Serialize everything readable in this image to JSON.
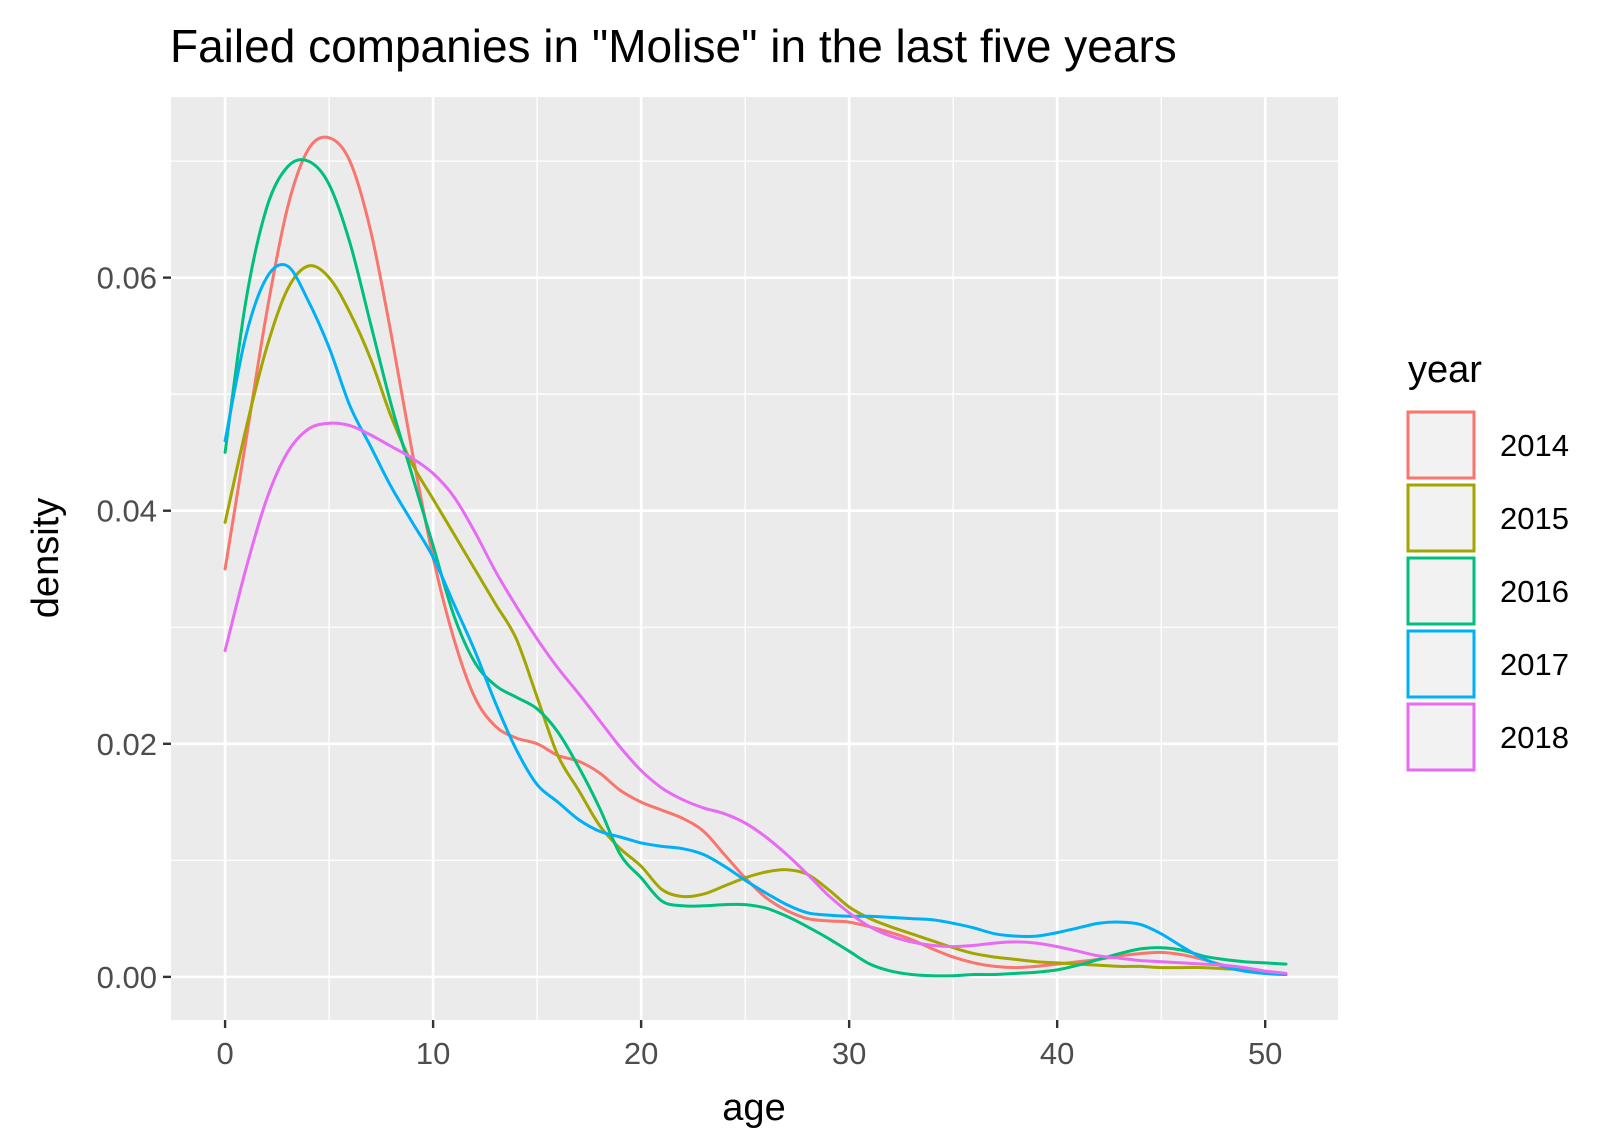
{
  "chart_data": {
    "type": "line",
    "title": "Failed companies in \"Molise\" in the last five years",
    "xlabel": "age",
    "ylabel": "density",
    "xlim": [
      -2.6,
      53.5
    ],
    "ylim": [
      -0.0037,
      0.0755
    ],
    "x_ticks": [
      0,
      10,
      20,
      30,
      40,
      50
    ],
    "x_tick_labels": [
      "0",
      "10",
      "20",
      "30",
      "40",
      "50"
    ],
    "y_ticks": [
      0.0,
      0.02,
      0.04,
      0.06
    ],
    "y_tick_labels": [
      "0.00",
      "0.02",
      "0.04",
      "0.06"
    ],
    "grid": true,
    "legend": {
      "title": "year",
      "position": "right"
    },
    "x": [
      0,
      1,
      2,
      3,
      4,
      5,
      6,
      7,
      8,
      9,
      10,
      11,
      12,
      13,
      14,
      15,
      16,
      17,
      18,
      19,
      20,
      21,
      22,
      23,
      24,
      25,
      26,
      27,
      28,
      29,
      30,
      31,
      32,
      33,
      34,
      35,
      36,
      37,
      38,
      39,
      40,
      41,
      42,
      43,
      44,
      45,
      46,
      47,
      48,
      49,
      50,
      51
    ],
    "series": [
      {
        "name": "2014",
        "color": "#f8766d",
        "values": [
          0.035,
          0.046,
          0.057,
          0.066,
          0.071,
          0.072,
          0.07,
          0.064,
          0.055,
          0.045,
          0.036,
          0.029,
          0.024,
          0.0215,
          0.0205,
          0.02,
          0.019,
          0.0185,
          0.0175,
          0.016,
          0.015,
          0.0143,
          0.0136,
          0.0125,
          0.0105,
          0.0085,
          0.0068,
          0.0057,
          0.005,
          0.0048,
          0.0047,
          0.0043,
          0.0038,
          0.0032,
          0.0024,
          0.0017,
          0.0012,
          0.0009,
          0.0008,
          0.0009,
          0.0011,
          0.0013,
          0.0015,
          0.0018,
          0.002,
          0.0021,
          0.0019,
          0.0015,
          0.001,
          0.0006,
          0.0003,
          0.0002
        ]
      },
      {
        "name": "2015",
        "color": "#a3a500",
        "values": [
          0.039,
          0.047,
          0.054,
          0.059,
          0.061,
          0.06,
          0.057,
          0.053,
          0.048,
          0.044,
          0.041,
          0.038,
          0.035,
          0.032,
          0.029,
          0.024,
          0.019,
          0.016,
          0.013,
          0.011,
          0.0095,
          0.0075,
          0.0069,
          0.0071,
          0.0078,
          0.0085,
          0.009,
          0.0092,
          0.0088,
          0.0075,
          0.006,
          0.005,
          0.0043,
          0.0037,
          0.0031,
          0.0025,
          0.002,
          0.0017,
          0.0015,
          0.0013,
          0.0012,
          0.0011,
          0.001,
          0.0009,
          0.0009,
          0.0008,
          0.0008,
          0.0008,
          0.0007,
          0.0006,
          0.0004,
          0.0002
        ]
      },
      {
        "name": "2016",
        "color": "#00bf7d",
        "values": [
          0.045,
          0.058,
          0.066,
          0.0695,
          0.07,
          0.068,
          0.063,
          0.056,
          0.049,
          0.043,
          0.037,
          0.031,
          0.027,
          0.025,
          0.024,
          0.023,
          0.021,
          0.018,
          0.0145,
          0.0105,
          0.0085,
          0.0065,
          0.0061,
          0.0061,
          0.0062,
          0.0062,
          0.0059,
          0.0052,
          0.0043,
          0.0033,
          0.0022,
          0.0011,
          0.0005,
          0.0002,
          0.0001,
          0.0001,
          0.0002,
          0.0002,
          0.0003,
          0.0004,
          0.0006,
          0.001,
          0.0015,
          0.002,
          0.0024,
          0.0025,
          0.0023,
          0.0018,
          0.0015,
          0.0013,
          0.0012,
          0.0011
        ]
      },
      {
        "name": "2017",
        "color": "#00b0f6",
        "values": [
          0.046,
          0.055,
          0.06,
          0.061,
          0.058,
          0.054,
          0.049,
          0.0455,
          0.042,
          0.039,
          0.036,
          0.032,
          0.028,
          0.0235,
          0.0195,
          0.0165,
          0.015,
          0.0135,
          0.0125,
          0.012,
          0.0115,
          0.0112,
          0.011,
          0.0105,
          0.0095,
          0.0083,
          0.0072,
          0.0062,
          0.0055,
          0.0053,
          0.0052,
          0.0052,
          0.0051,
          0.005,
          0.0049,
          0.0046,
          0.0042,
          0.0037,
          0.0035,
          0.0035,
          0.0038,
          0.0042,
          0.0046,
          0.0047,
          0.0045,
          0.0037,
          0.0026,
          0.0016,
          0.0009,
          0.0005,
          0.0003,
          0.0002
        ]
      },
      {
        "name": "2018",
        "color": "#e76bf3",
        "values": [
          0.028,
          0.035,
          0.041,
          0.045,
          0.047,
          0.0475,
          0.0473,
          0.0465,
          0.0455,
          0.0445,
          0.0432,
          0.0412,
          0.0382,
          0.0348,
          0.0318,
          0.029,
          0.0265,
          0.0243,
          0.022,
          0.0197,
          0.0177,
          0.0162,
          0.0152,
          0.0145,
          0.014,
          0.0132,
          0.012,
          0.0105,
          0.0088,
          0.007,
          0.0055,
          0.0043,
          0.0035,
          0.003,
          0.0027,
          0.0026,
          0.0027,
          0.0029,
          0.003,
          0.0029,
          0.0026,
          0.0022,
          0.0018,
          0.0016,
          0.0014,
          0.0013,
          0.0012,
          0.0011,
          0.001,
          0.0008,
          0.0005,
          0.0003
        ]
      }
    ]
  }
}
